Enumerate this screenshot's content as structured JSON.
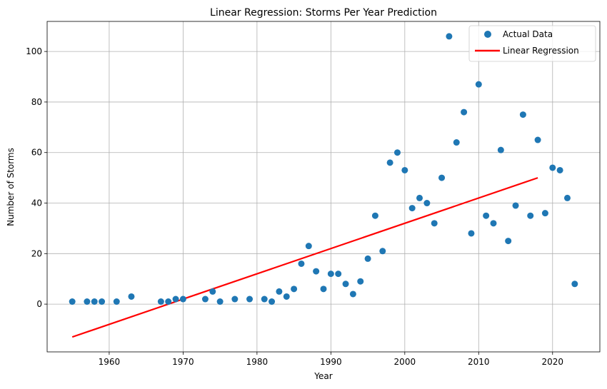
{
  "chart_data": {
    "type": "scatter",
    "title": "Linear Regression: Storms Per Year Prediction",
    "xlabel": "Year",
    "ylabel": "Number of Storms",
    "xlim": [
      1951.6,
      2026.4
    ],
    "ylim": [
      -18.9,
      111.9
    ],
    "xticks": [
      1960,
      1970,
      1980,
      1990,
      2000,
      2010,
      2020
    ],
    "yticks": [
      0,
      20,
      40,
      60,
      80,
      100
    ],
    "grid": true,
    "legend_position": "top-right",
    "series": [
      {
        "name": "Actual Data",
        "kind": "scatter",
        "color": "#1f77b4",
        "points": [
          [
            1955,
            1
          ],
          [
            1957,
            1
          ],
          [
            1958,
            1
          ],
          [
            1959,
            1
          ],
          [
            1961,
            1
          ],
          [
            1963,
            3
          ],
          [
            1967,
            1
          ],
          [
            1968,
            1
          ],
          [
            1969,
            2
          ],
          [
            1970,
            2
          ],
          [
            1973,
            2
          ],
          [
            1974,
            5
          ],
          [
            1975,
            1
          ],
          [
            1977,
            2
          ],
          [
            1979,
            2
          ],
          [
            1981,
            2
          ],
          [
            1982,
            1
          ],
          [
            1983,
            5
          ],
          [
            1984,
            3
          ],
          [
            1985,
            6
          ],
          [
            1986,
            16
          ],
          [
            1987,
            23
          ],
          [
            1988,
            13
          ],
          [
            1989,
            6
          ],
          [
            1990,
            12
          ],
          [
            1991,
            12
          ],
          [
            1992,
            8
          ],
          [
            1993,
            4
          ],
          [
            1994,
            9
          ],
          [
            1995,
            18
          ],
          [
            1996,
            35
          ],
          [
            1997,
            21
          ],
          [
            1998,
            56
          ],
          [
            1999,
            60
          ],
          [
            2000,
            53
          ],
          [
            2001,
            38
          ],
          [
            2002,
            42
          ],
          [
            2003,
            40
          ],
          [
            2004,
            32
          ],
          [
            2005,
            50
          ],
          [
            2006,
            106
          ],
          [
            2007,
            64
          ],
          [
            2008,
            76
          ],
          [
            2009,
            28
          ],
          [
            2010,
            87
          ],
          [
            2011,
            35
          ],
          [
            2012,
            32
          ],
          [
            2013,
            61
          ],
          [
            2014,
            25
          ],
          [
            2015,
            39
          ],
          [
            2016,
            75
          ],
          [
            2017,
            35
          ],
          [
            2018,
            65
          ],
          [
            2019,
            36
          ],
          [
            2020,
            54
          ],
          [
            2021,
            53
          ],
          [
            2022,
            42
          ],
          [
            2023,
            8
          ]
        ]
      },
      {
        "name": "Linear Regression",
        "kind": "line",
        "color": "#ff0000",
        "points": [
          [
            1955,
            -13
          ],
          [
            2018,
            50
          ]
        ]
      }
    ]
  }
}
